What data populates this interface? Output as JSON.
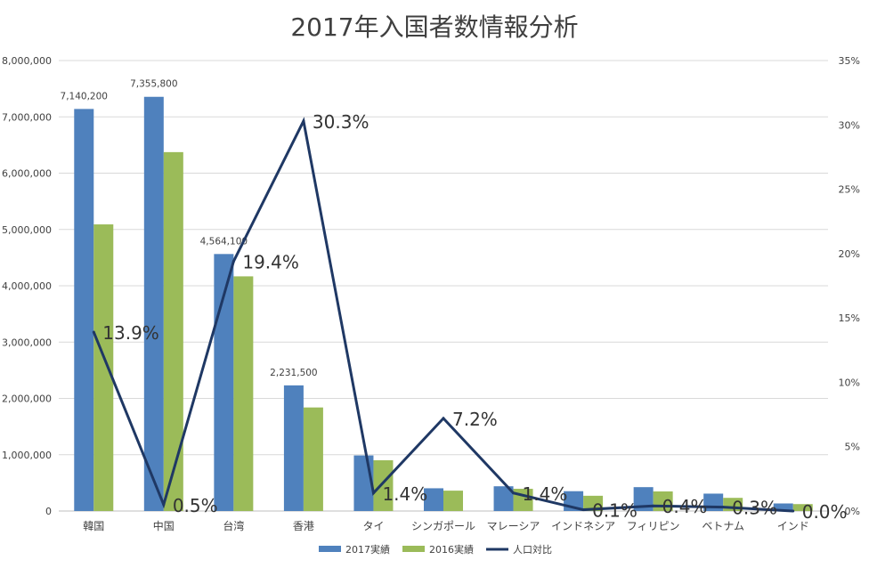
{
  "chart_data": {
    "type": "bar",
    "title": "2017年入国者数情報分析",
    "categories": [
      "韓国",
      "中国",
      "台湾",
      "香港",
      "タイ",
      "シンガポール",
      "マレーシア",
      "インドネシア",
      "フィリピン",
      "ベトナム",
      "インド"
    ],
    "series": [
      {
        "name": "2017実績",
        "kind": "bar",
        "axis": "left",
        "color": "#4F81BD",
        "values": [
          7140200,
          7355800,
          4564100,
          2231500,
          987100,
          404100,
          439500,
          352200,
          424100,
          308900,
          134400
        ]
      },
      {
        "name": "2016実績",
        "kind": "bar",
        "axis": "left",
        "color": "#9BBB59",
        "values": [
          5090300,
          6373600,
          4167500,
          1839200,
          901500,
          361800,
          394300,
          271000,
          347800,
          233800,
          122900
        ]
      },
      {
        "name": "人口対比",
        "kind": "line",
        "axis": "right",
        "color": "#1F3864",
        "values": [
          13.9,
          0.5,
          19.4,
          30.3,
          1.4,
          7.2,
          1.4,
          0.1,
          0.4,
          0.3,
          0.0
        ]
      }
    ],
    "bar_labels": [
      "7,140,200",
      "7,355,800",
      "4,564,100",
      "2,231,500",
      "",
      "",
      "",
      "",
      "",
      "",
      ""
    ],
    "line_labels": [
      "13.9%",
      "0.5%",
      "19.4%",
      "30.3%",
      "1.4%",
      "7.2%",
      "1.4%",
      "0.1%",
      "0.4%",
      "0.3%",
      "0.0%"
    ],
    "y_left": {
      "min": 0,
      "max": 8000000,
      "ticks": [
        0,
        1000000,
        2000000,
        3000000,
        4000000,
        5000000,
        6000000,
        7000000,
        8000000
      ],
      "tick_labels": [
        "0",
        "1,000,000",
        "2,000,000",
        "3,000,000",
        "4,000,000",
        "5,000,000",
        "6,000,000",
        "7,000,000",
        "8,000,000"
      ]
    },
    "y_right": {
      "min": 0,
      "max": 35,
      "ticks": [
        0,
        5,
        10,
        15,
        20,
        25,
        30,
        35
      ],
      "tick_labels": [
        "0%",
        "5%",
        "10%",
        "15%",
        "20%",
        "25%",
        "30%",
        "35%"
      ]
    },
    "grid": true,
    "legend_position": "bottom-center"
  }
}
